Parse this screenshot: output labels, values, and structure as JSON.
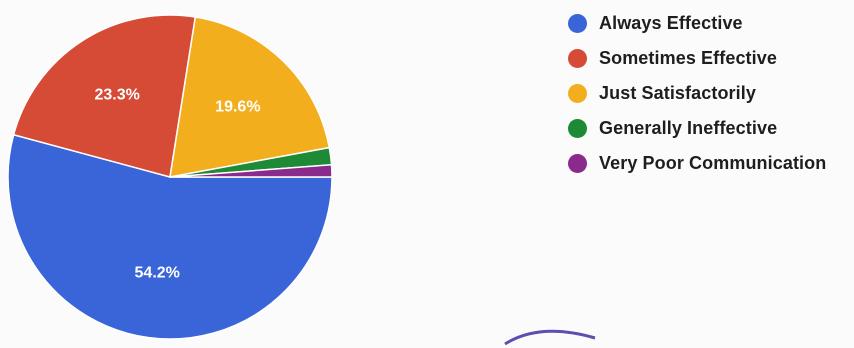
{
  "chart_data": {
    "type": "pie",
    "slices": [
      {
        "name": "Always Effective",
        "value": 54.2,
        "label": "54.2%",
        "color": "#3a65d8"
      },
      {
        "name": "Sometimes Effective",
        "value": 23.3,
        "label": "23.3%",
        "color": "#d64b36"
      },
      {
        "name": "Just Satisfactorily",
        "value": 19.6,
        "label": "19.6%",
        "color": "#f2ae1c"
      },
      {
        "name": "Generally Ineffective",
        "value": 1.7,
        "label": "",
        "color": "#1f8a35"
      },
      {
        "name": "Very Poor Communication",
        "value": 1.2,
        "label": "",
        "color": "#8a2a8c"
      }
    ],
    "legend_position": "right"
  }
}
